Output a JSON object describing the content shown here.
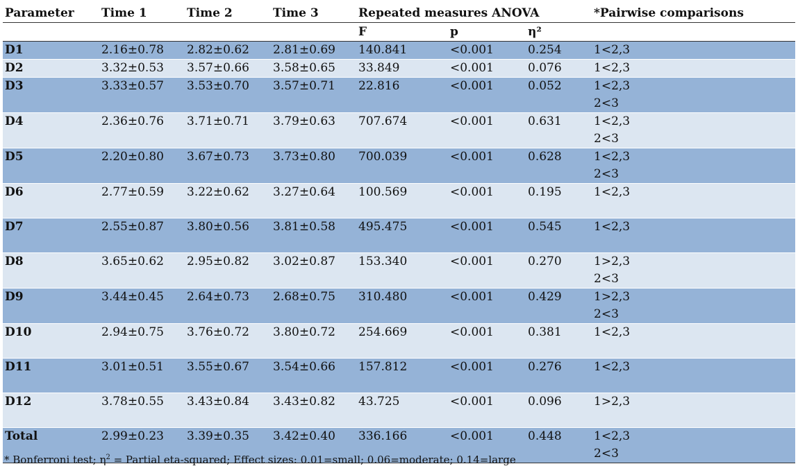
{
  "header": {
    "row1": [
      "Parameter",
      "Time 1",
      "Time 2",
      "Time 3",
      "Repeated measures ANOVA",
      "*Pairwise comparisons"
    ],
    "row2": [
      "F",
      "p",
      "η²"
    ]
  },
  "rows": [
    {
      "param": "D1",
      "t1": "2.16±0.78",
      "t2": "2.82±0.62",
      "t3": "2.81±0.69",
      "F": "140.841",
      "p": "<0.001",
      "eta": "0.254",
      "pair1": "1<2,3",
      "pair2": ""
    },
    {
      "param": "D2",
      "t1": "3.32±0.53",
      "t2": "3.57±0.66",
      "t3": "3.58±0.65",
      "F": "33.849",
      "p": "<0.001",
      "eta": "0.076",
      "pair1": "1<2,3",
      "pair2": ""
    },
    {
      "param": "D3",
      "t1": "3.33±0.57",
      "t2": "3.53±0.70",
      "t3": "3.57±0.71",
      "F": "22.816",
      "p": "<0.001",
      "eta": "0.052",
      "pair1": "1<2,3",
      "pair2": "2<3"
    },
    {
      "param": "D4",
      "t1": "2.36±0.76",
      "t2": "3.71±0.71",
      "t3": "3.79±0.63",
      "F": "707.674",
      "p": "<0.001",
      "eta": "0.631",
      "pair1": "1<2,3",
      "pair2": "2<3"
    },
    {
      "param": "D5",
      "t1": "2.20±0.80",
      "t2": "3.67±0.73",
      "t3": "3.73±0.80",
      "F": "700.039",
      "p": "<0.001",
      "eta": "0.628",
      "pair1": "1<2,3",
      "pair2": "2<3"
    },
    {
      "param": "D6",
      "t1": "2.77±0.59",
      "t2": "3.22±0.62",
      "t3": "3.27±0.64",
      "F": "100.569",
      "p": "<0.001",
      "eta": "0.195",
      "pair1": "1<2,3",
      "pair2": ""
    },
    {
      "param": "D7",
      "t1": "2.55±0.87",
      "t2": "3.80±0.56",
      "t3": "3.81±0.58",
      "F": "495.475",
      "p": "<0.001",
      "eta": "0.545",
      "pair1": "1<2,3",
      "pair2": ""
    },
    {
      "param": "D8",
      "t1": "3.65±0.62",
      "t2": "2.95±0.82",
      "t3": "3.02±0.87",
      "F": "153.340",
      "p": "<0.001",
      "eta": "0.270",
      "pair1": "1>2,3",
      "pair2": "2<3"
    },
    {
      "param": "D9",
      "t1": "3.44±0.45",
      "t2": "2.64±0.73",
      "t3": "2.68±0.75",
      "F": "310.480",
      "p": "<0.001",
      "eta": "0.429",
      "pair1": "1>2,3",
      "pair2": "2<3"
    },
    {
      "param": "D10",
      "t1": "2.94±0.75",
      "t2": "3.76±0.72",
      "t3": "3.80±0.72",
      "F": "254.669",
      "p": "<0.001",
      "eta": "0.381",
      "pair1": "1<2,3",
      "pair2": ""
    },
    {
      "param": "D11",
      "t1": "3.01±0.51",
      "t2": "3.55±0.67",
      "t3": "3.54±0.66",
      "F": "157.812",
      "p": "<0.001",
      "eta": "0.276",
      "pair1": "1<2,3",
      "pair2": ""
    },
    {
      "param": "D12",
      "t1": "3.78±0.55",
      "t2": "3.43±0.84",
      "t3": "3.43±0.82",
      "F": "43.725",
      "p": "<0.001",
      "eta": "0.096",
      "pair1": "1>2,3",
      "pair2": ""
    },
    {
      "param": "Total",
      "t1": "2.99±0.23",
      "t2": "3.39±0.35",
      "t3": "3.42±0.40",
      "F": "336.166",
      "p": "<0.001",
      "eta": "0.448",
      "pair1": "1<2,3",
      "pair2": "2<3"
    }
  ],
  "footnote": {
    "prefix": "* Bonferroni test; η",
    "sup": "2",
    "suffix": " = Partial eta-squared; Effect sizes: 0.01=small; 0.06=moderate; 0.14=large"
  },
  "colors": {
    "row_dark": "#95b3d7",
    "row_light": "#dce6f1"
  }
}
